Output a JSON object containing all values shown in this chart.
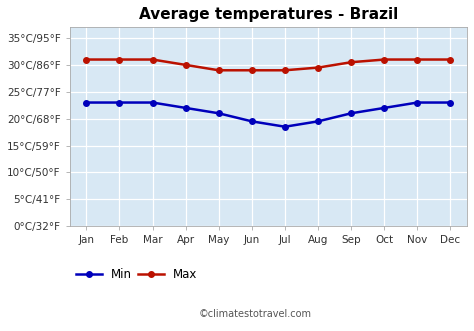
{
  "title": "Average temperatures - Brazil",
  "months": [
    "Jan",
    "Feb",
    "Mar",
    "Apr",
    "May",
    "Jun",
    "Jul",
    "Aug",
    "Sep",
    "Oct",
    "Nov",
    "Dec"
  ],
  "min_temps": [
    23,
    23,
    23,
    22,
    21,
    19.5,
    18.5,
    19.5,
    21,
    22,
    23,
    23
  ],
  "max_temps": [
    31,
    31,
    31,
    30,
    29,
    29,
    29,
    29.5,
    30.5,
    31,
    31,
    31
  ],
  "min_color": "#0000bb",
  "max_color": "#bb1100",
  "background_color": "#ffffff",
  "plot_bg_color": "#d8e8f4",
  "grid_color": "#ffffff",
  "yticks_c": [
    0,
    5,
    10,
    15,
    20,
    25,
    30,
    35
  ],
  "ytick_labels": [
    "0°C/32°F",
    "5°C/41°F",
    "10°C/50°F",
    "15°C/59°F",
    "20°C/68°F",
    "25°C/77°F",
    "30°C/86°F",
    "35°C/95°F"
  ],
  "ylim": [
    0,
    37
  ],
  "legend_min_label": "Min",
  "legend_max_label": "Max",
  "watermark": "©climatestotravel.com",
  "title_fontsize": 11,
  "axis_fontsize": 7.5,
  "legend_fontsize": 8.5,
  "marker": "o",
  "marker_size": 4,
  "line_width": 1.8
}
